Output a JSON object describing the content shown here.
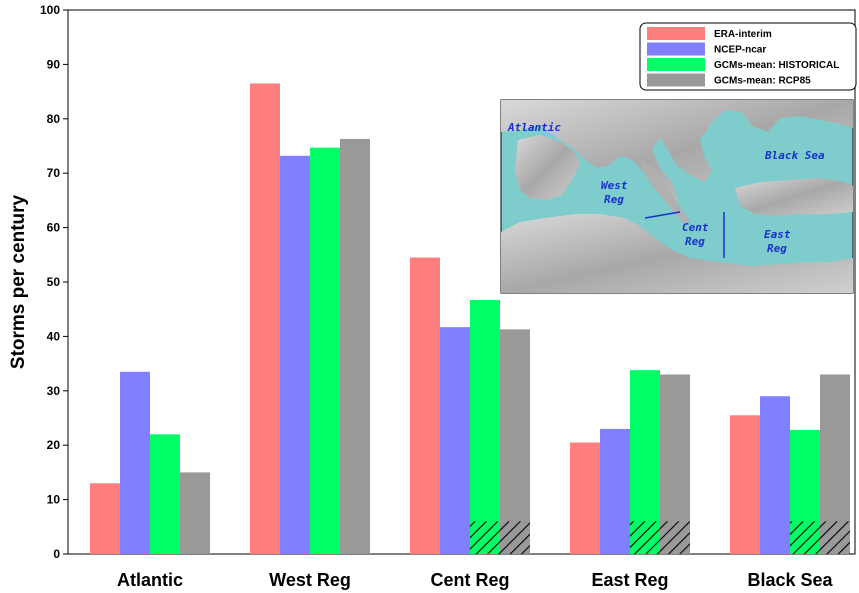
{
  "chart_data": {
    "type": "bar",
    "ylabel": "Storms per century",
    "xlabel": "",
    "ylim": [
      0,
      100
    ],
    "yticks": [
      0,
      10,
      20,
      30,
      40,
      50,
      60,
      70,
      80,
      90,
      100
    ],
    "categories": [
      "Atlantic",
      "West Reg",
      "Cent Reg",
      "East Reg",
      "Black Sea"
    ],
    "series": [
      {
        "name": "ERA-interim",
        "color": "#ff7f7f",
        "values": [
          13,
          86.5,
          54.5,
          20.5,
          25.5
        ]
      },
      {
        "name": "NCEP-ncar",
        "color": "#7f7fff",
        "values": [
          33.5,
          73.2,
          41.7,
          23,
          29
        ]
      },
      {
        "name": "GCMs-mean: HISTORICAL",
        "color": "#00ff66",
        "values": [
          22,
          74.7,
          46.7,
          33.8,
          22.8
        ]
      },
      {
        "name": "GCMs-mean: RCP85",
        "color": "#999999",
        "values": [
          15,
          76.3,
          41.3,
          33,
          33
        ]
      }
    ],
    "hatched_regions": [
      {
        "category": "Cent Reg",
        "series": [
          "GCMs-mean: HISTORICAL",
          "GCMs-mean: RCP85"
        ],
        "top": 6
      },
      {
        "category": "East Reg",
        "series": [
          "GCMs-mean: HISTORICAL",
          "GCMs-mean: RCP85"
        ],
        "top": 6
      },
      {
        "category": "Black Sea",
        "series": [
          "GCMs-mean: HISTORICAL",
          "GCMs-mean: RCP85"
        ],
        "top": 6
      }
    ],
    "legend_position": "top-right",
    "grid": false
  },
  "inset_map": {
    "labels": [
      "Atlantic",
      "West Reg",
      "Cent Reg",
      "East Reg",
      "Black Sea"
    ],
    "sea_color": "#7fcccc",
    "land_color": "#b8b8b8"
  }
}
